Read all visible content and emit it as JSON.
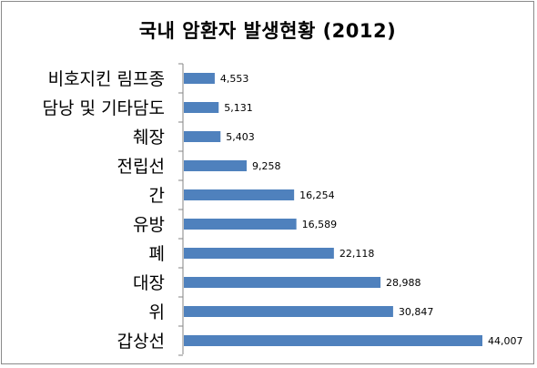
{
  "chart_data": {
    "type": "bar",
    "orientation": "horizontal",
    "title": "국내 암환자 발생현황 (2012)",
    "categories": [
      "비호지킨 림프종",
      "담낭 및 기타담도",
      "췌장",
      "전립선",
      "간",
      "유방",
      "폐",
      "대장",
      "위",
      "갑상선"
    ],
    "values": [
      4553,
      5131,
      5403,
      9258,
      16254,
      16589,
      22118,
      28988,
      30847,
      44007
    ],
    "value_labels": [
      "4,553",
      "5,131",
      "5,403",
      "9,258",
      "16,254",
      "16,589",
      "22,118",
      "28,988",
      "30,847",
      "44,007"
    ],
    "xlim": [
      0,
      44007
    ],
    "grid": false,
    "legend": "none",
    "bar_color": "#4f81bd"
  }
}
